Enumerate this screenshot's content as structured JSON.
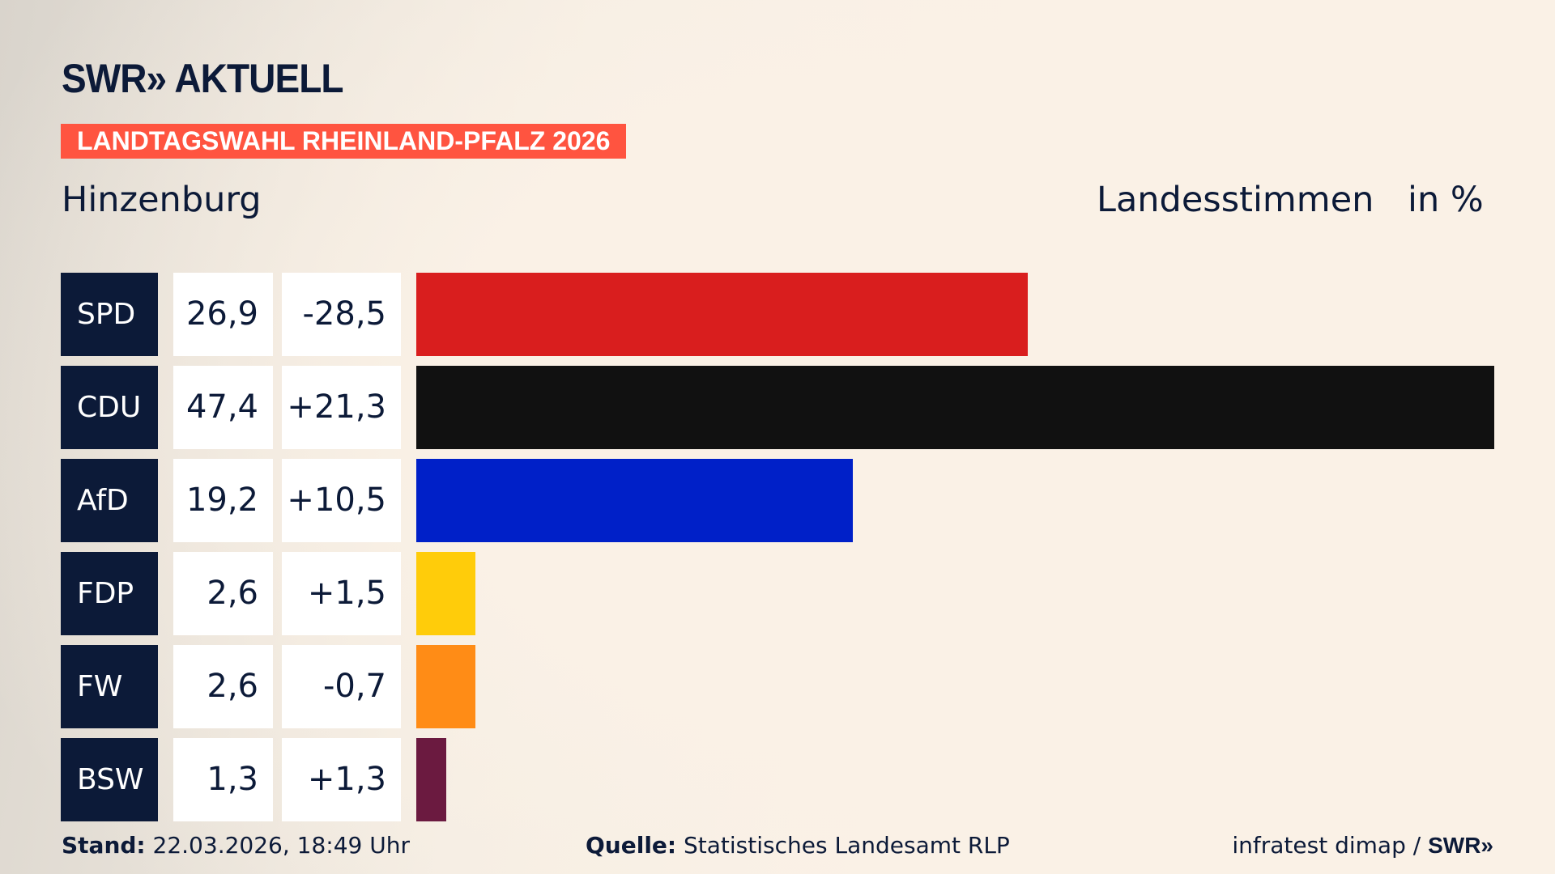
{
  "header": {
    "logo": "SWR» AKTUELL",
    "banner": "LANDTAGSWAHL RHEINLAND-PFALZ 2026",
    "region": "Hinzenburg",
    "measure": "Landesstimmen",
    "unit": "in %"
  },
  "chart_data": {
    "type": "bar",
    "orientation": "horizontal",
    "xlim": [
      0,
      47.4
    ],
    "categories": [
      "SPD",
      "CDU",
      "AfD",
      "FDP",
      "FW",
      "BSW"
    ],
    "values": [
      26.9,
      47.4,
      19.2,
      2.6,
      2.6,
      1.3
    ],
    "value_labels": [
      "26,9",
      "47,4",
      "19,2",
      "2,6",
      "2,6",
      "1,3"
    ],
    "diff_labels": [
      "-28,5",
      "+21,3",
      "+10,5",
      "+1,5",
      "-0,7",
      "+1,3"
    ],
    "colors": [
      "#d91e1e",
      "#111111",
      "#0020c8",
      "#ffcc0a",
      "#ff8c16",
      "#6b1a40"
    ]
  },
  "footer": {
    "stand_label": "Stand:",
    "stand_value": "22.03.2026, 18:49 Uhr",
    "source_label": "Quelle:",
    "source_value": "Statistisches Landesamt RLP",
    "credit": "infratest dimap / ",
    "credit_logo": "SWR»"
  }
}
